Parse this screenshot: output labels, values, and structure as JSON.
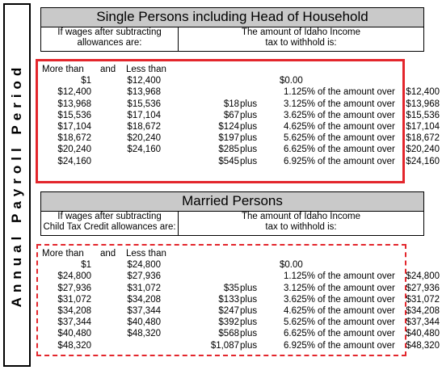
{
  "side_label": "Annual Payroll Period",
  "single": {
    "title": "Single Persons including Head of Household",
    "hdr_left_1": "If wages after subtracting",
    "hdr_left_2": "allowances are:",
    "hdr_right_1": "The amount of Idaho Income",
    "hdr_right_2": "tax to withhold is:",
    "col_more": "More than",
    "col_and": "and",
    "col_less": "Less than",
    "rows": [
      {
        "more": "$1",
        "less": "$12,400",
        "base": "",
        "plus": "",
        "rate": "$0.00",
        "over": "",
        "amt": ""
      },
      {
        "more": "$12,400",
        "less": "$13,968",
        "base": "",
        "plus": "",
        "rate": "1.125%",
        "over": "of the amount over",
        "amt": "$12,400"
      },
      {
        "more": "$13,968",
        "less": "$15,536",
        "base": "$18",
        "plus": "plus",
        "rate": "3.125%",
        "over": "of the amount over",
        "amt": "$13,968"
      },
      {
        "more": "$15,536",
        "less": "$17,104",
        "base": "$67",
        "plus": "plus",
        "rate": "3.625%",
        "over": "of the amount over",
        "amt": "$15,536"
      },
      {
        "more": "$17,104",
        "less": "$18,672",
        "base": "$124",
        "plus": "plus",
        "rate": "4.625%",
        "over": "of the amount over",
        "amt": "$17,104"
      },
      {
        "more": "$18,672",
        "less": "$20,240",
        "base": "$197",
        "plus": "plus",
        "rate": "5.625%",
        "over": "of the amount over",
        "amt": "$18,672"
      },
      {
        "more": "$20,240",
        "less": "$24,160",
        "base": "$285",
        "plus": "plus",
        "rate": "6.625%",
        "over": "of the amount over",
        "amt": "$20,240"
      },
      {
        "more": "$24,160",
        "less": "",
        "base": "$545",
        "plus": "plus",
        "rate": "6.925%",
        "over": "of the amount over",
        "amt": "$24,160"
      }
    ]
  },
  "married": {
    "title": "Married Persons",
    "hdr_left_1": "If wages after subtracting",
    "hdr_left_2": "Child Tax Credit allowances are:",
    "hdr_right_1": "The amount of Idaho Income",
    "hdr_right_2": "tax to withhold is:",
    "col_more": "More than",
    "col_and": "and",
    "col_less": "Less than",
    "rows": [
      {
        "more": "$1",
        "less": "$24,800",
        "base": "",
        "plus": "",
        "rate": "$0.00",
        "over": "",
        "amt": ""
      },
      {
        "more": "$24,800",
        "less": "$27,936",
        "base": "",
        "plus": "",
        "rate": "1.125%",
        "over": "of the amount over",
        "amt": "$24,800"
      },
      {
        "more": "$27,936",
        "less": "$31,072",
        "base": "$35",
        "plus": "plus",
        "rate": "3.125%",
        "over": "of the amount over",
        "amt": "$27,936"
      },
      {
        "more": "$31,072",
        "less": "$34,208",
        "base": "$133",
        "plus": "plus",
        "rate": "3.625%",
        "over": "of the amount over",
        "amt": "$31,072"
      },
      {
        "more": "$34,208",
        "less": "$37,344",
        "base": "$247",
        "plus": "plus",
        "rate": "4.625%",
        "over": "of the amount over",
        "amt": "$34,208"
      },
      {
        "more": "$37,344",
        "less": "$40,480",
        "base": "$392",
        "plus": "plus",
        "rate": "5.625%",
        "over": "of the amount over",
        "amt": "$37,344"
      },
      {
        "more": "$40,480",
        "less": "$48,320",
        "base": "$568",
        "plus": "plus",
        "rate": "6.625%",
        "over": "of the amount over",
        "amt": "$40,480"
      },
      {
        "more": "$48,320",
        "less": "",
        "base": "$1,087",
        "plus": "plus",
        "rate": "6.925%",
        "over": "of the amount over",
        "amt": "$48,320"
      }
    ]
  }
}
